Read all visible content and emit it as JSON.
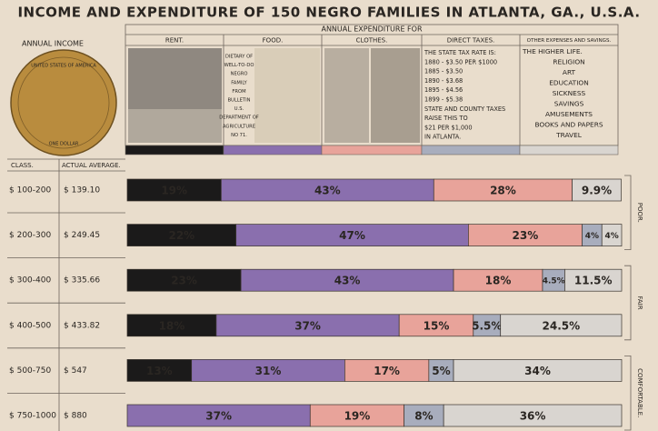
{
  "chart_data": {
    "type": "bar",
    "stacked": true,
    "orientation": "horizontal",
    "title": "INCOME AND EXPENDITURE OF 150 NEGRO FAMILIES IN ATLANTA, GA., U.S.A.",
    "subtitle": "ANNUAL EXPENDITURE FOR",
    "income_label": "ANNUAL INCOME",
    "class_label": "CLASS.",
    "average_label": "ACTUAL AVERAGE.",
    "categories": [
      "$ 100-200",
      "$ 200-300",
      "$ 300-400",
      "$ 400-500",
      "$ 500-750",
      "$ 750-1000"
    ],
    "averages": [
      "$ 139.10",
      "$ 249.45",
      "$ 335.66",
      "$ 433.82",
      "$ 547",
      "$ 880"
    ],
    "groups": [
      "POOR.",
      "FAIR",
      "COMFORTABLE."
    ],
    "xlim": [
      0,
      100
    ],
    "series": [
      {
        "name": "RENT.",
        "color": "#1b1a1a",
        "values": [
          19,
          22,
          23,
          18,
          13,
          null
        ],
        "value_labels": [
          "19%",
          "22%",
          "23%",
          "18%",
          "13%",
          null
        ]
      },
      {
        "name": "FOOD.",
        "color": "#8a6fae",
        "values": [
          43,
          47,
          43,
          37,
          31,
          37
        ],
        "value_labels": [
          "43%",
          "47%",
          "43%",
          "37%",
          "31%",
          "37%"
        ]
      },
      {
        "name": "CLOTHES.",
        "color": "#e8a39a",
        "values": [
          28,
          23,
          18,
          15,
          17,
          19
        ],
        "value_labels": [
          "28%",
          "23%",
          "18%",
          "15%",
          "17%",
          "19%"
        ]
      },
      {
        "name": "DIRECT TAXES.",
        "color": "#a8adbd",
        "values": [
          null,
          4,
          4.5,
          5.5,
          5,
          8
        ],
        "value_labels": [
          null,
          "4%",
          "4.5%",
          "5.5%",
          "5%",
          "8%"
        ]
      },
      {
        "name": "OTHER EXPENSES AND SAVINGS.",
        "color": "#d9d5d0",
        "values": [
          9.9,
          4,
          11.5,
          24.5,
          34,
          36
        ],
        "value_labels": [
          "9.9%",
          "4%",
          "11.5%",
          "24.5%",
          "34%",
          "36%"
        ]
      }
    ]
  },
  "coin": {
    "top": "UNITED STATES OF AMERICA",
    "bottom": "ONE DOLLAR"
  },
  "panels": {
    "food": [
      "DIETARY OF",
      "WELL-TO-DO",
      "NEGRO",
      "FAMILY",
      "FROM",
      "BULLETIN",
      "U.S.",
      "DEPARTMENT OF",
      "AGRICULTURE",
      "NO 71."
    ],
    "taxes": [
      "THE STATE TAX RATE IS:",
      "1880 - $3.50 PER $1000",
      "1885 - $3.50",
      "1890 - $3.68",
      "1895 - $4.56",
      "1899 - $5.38",
      "STATE AND COUNTY TAXES",
      "RAISE THIS TO",
      "$21 PER $1,000",
      "IN ATLANTA."
    ],
    "other": [
      "THE HIGHER LIFE.",
      "RELIGION",
      "ART",
      "EDUCATION",
      "SICKNESS",
      "SAVINGS",
      "AMUSEMENTS",
      "BOOKS AND PAPERS",
      "TRAVEL"
    ]
  }
}
